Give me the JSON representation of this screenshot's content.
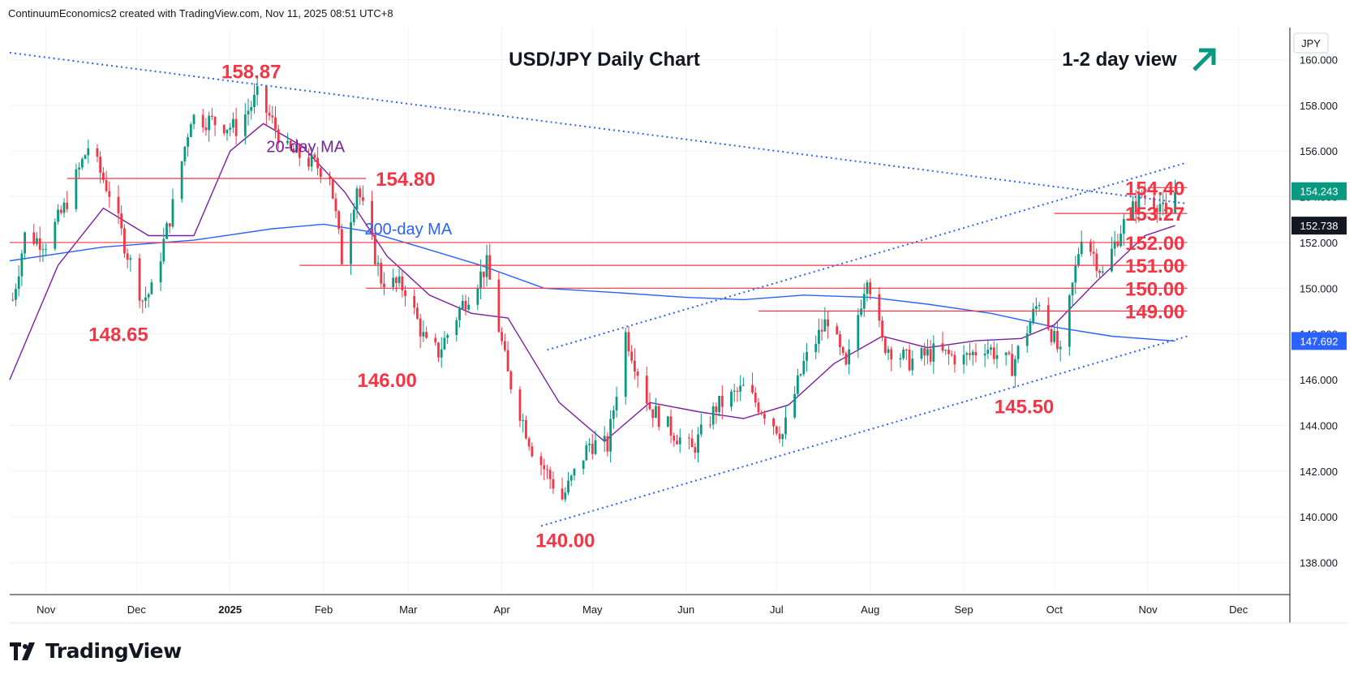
{
  "header": {
    "attribution": "ContinuumEconomics2 created with TradingView.com, Nov 11, 2025 08:51 UTC+8"
  },
  "footer": {
    "brand": "TradingView"
  },
  "colors": {
    "up": "#089981",
    "down": "#f23645",
    "ma20": "#7b1fa2",
    "ma200": "#2962ff",
    "level": "#f23645",
    "trend": "#2962ff",
    "arrow": "#089981",
    "lastPrice": "#089981",
    "ma20Tag": "#131722",
    "ma200Tag": "#2962ff"
  },
  "chart_data": {
    "type": "candlestick",
    "title": "USD/JPY Daily Chart",
    "subtitle": "1-2 day view",
    "currency": "JPY",
    "ylim": [
      136.6,
      161.4
    ],
    "y_ticks": [
      "160.000",
      "158.000",
      "156.000",
      "154.000",
      "152.000",
      "150.000",
      "148.000",
      "146.000",
      "144.000",
      "142.000",
      "140.000",
      "138.000"
    ],
    "x_ticks": [
      "Nov",
      "Dec",
      "2025",
      "Feb",
      "Mar",
      "Apr",
      "May",
      "Jun",
      "Jul",
      "Aug",
      "Sep",
      "Oct",
      "Nov",
      "Dec"
    ],
    "x_tick_dates": [
      "2024-11-01",
      "2024-12-01",
      "2025-01-01",
      "2025-02-01",
      "2025-03-01",
      "2025-04-01",
      "2025-05-01",
      "2025-06-01",
      "2025-07-01",
      "2025-08-01",
      "2025-09-01",
      "2025-10-01",
      "2025-11-01",
      "2025-12-01"
    ],
    "x_range": [
      "2024-10-20",
      "2025-12-18"
    ],
    "last_price": "154.243",
    "ma20_value": "152.738",
    "ma200_value": "147.692",
    "ma_labels": [
      {
        "text": "20-day MA",
        "date": "2025-01-26",
        "price": 156.2,
        "colorKey": "ma20"
      },
      {
        "text": "200-day MA",
        "date": "2025-03-01",
        "price": 152.6,
        "colorKey": "ma200"
      }
    ],
    "levels": [
      {
        "label": "154.40",
        "price": 154.4,
        "from": "2025-11-01"
      },
      {
        "label": "153.27",
        "price": 153.27,
        "from": "2025-10-01"
      },
      {
        "label": "152.00",
        "price": 152.0,
        "from": "2024-10-20"
      },
      {
        "label": "151.00",
        "price": 151.0,
        "from": "2025-01-24"
      },
      {
        "label": "150.00",
        "price": 150.0,
        "from": "2025-02-15"
      },
      {
        "label": "149.00",
        "price": 149.0,
        "from": "2025-06-25"
      },
      {
        "label": "154.80",
        "price": 154.8,
        "from": "2024-11-08",
        "to": "2025-02-15"
      }
    ],
    "annotations": [
      {
        "text": "158.87",
        "date": "2025-01-08",
        "price": 159.5
      },
      {
        "text": "148.65",
        "date": "2024-11-25",
        "price": 148.0
      },
      {
        "text": "146.00",
        "date": "2025-02-22",
        "price": 146.0
      },
      {
        "text": "140.00",
        "date": "2025-04-22",
        "price": 139.0
      },
      {
        "text": "145.50",
        "date": "2025-09-21",
        "price": 144.85
      }
    ],
    "trendlines": [
      {
        "from": [
          "2024-10-20",
          160.3
        ],
        "to": [
          "2025-11-14",
          153.7
        ]
      },
      {
        "from": [
          "2025-04-16",
          147.3
        ],
        "to": [
          "2025-11-14",
          155.5
        ]
      },
      {
        "from": [
          "2025-04-14",
          139.6
        ],
        "to": [
          "2025-11-14",
          147.9
        ]
      }
    ],
    "ma20": [
      [
        "2024-10-20",
        146.0
      ],
      [
        "2024-11-05",
        151.0
      ],
      [
        "2024-11-20",
        153.5
      ],
      [
        "2024-12-05",
        152.3
      ],
      [
        "2024-12-20",
        152.3
      ],
      [
        "2025-01-01",
        156.0
      ],
      [
        "2025-01-12",
        157.2
      ],
      [
        "2025-01-25",
        156.2
      ],
      [
        "2025-02-08",
        154.2
      ],
      [
        "2025-02-22",
        151.4
      ],
      [
        "2025-03-08",
        149.7
      ],
      [
        "2025-03-22",
        148.9
      ],
      [
        "2025-04-03",
        148.7
      ],
      [
        "2025-04-20",
        145.0
      ],
      [
        "2025-05-05",
        143.3
      ],
      [
        "2025-05-20",
        145.0
      ],
      [
        "2025-06-05",
        144.6
      ],
      [
        "2025-06-20",
        144.3
      ],
      [
        "2025-07-05",
        144.9
      ],
      [
        "2025-07-20",
        146.7
      ],
      [
        "2025-08-05",
        147.9
      ],
      [
        "2025-08-20",
        147.4
      ],
      [
        "2025-09-05",
        147.7
      ],
      [
        "2025-09-20",
        147.8
      ],
      [
        "2025-10-01",
        148.4
      ],
      [
        "2025-10-15",
        150.3
      ],
      [
        "2025-10-31",
        152.3
      ],
      [
        "2025-11-10",
        152.74
      ]
    ],
    "ma200": [
      [
        "2024-10-20",
        151.2
      ],
      [
        "2024-11-20",
        151.8
      ],
      [
        "2024-12-20",
        152.1
      ],
      [
        "2025-01-15",
        152.6
      ],
      [
        "2025-02-01",
        152.8
      ],
      [
        "2025-02-15",
        152.5
      ],
      [
        "2025-03-05",
        151.8
      ],
      [
        "2025-03-25",
        151.0
      ],
      [
        "2025-04-15",
        150.0
      ],
      [
        "2025-05-10",
        149.8
      ],
      [
        "2025-06-01",
        149.6
      ],
      [
        "2025-06-20",
        149.5
      ],
      [
        "2025-07-10",
        149.7
      ],
      [
        "2025-08-01",
        149.6
      ],
      [
        "2025-08-20",
        149.3
      ],
      [
        "2025-09-10",
        148.9
      ],
      [
        "2025-10-01",
        148.3
      ],
      [
        "2025-10-20",
        147.9
      ],
      [
        "2025-11-10",
        147.69
      ]
    ],
    "ohlc_path": [
      [
        "2024-10-21",
        149.5
      ],
      [
        "2024-10-25",
        152.3
      ],
      [
        "2024-11-01",
        152.0
      ],
      [
        "2024-11-07",
        153.5
      ],
      [
        "2024-11-15",
        156.2
      ],
      [
        "2024-11-22",
        154.2
      ],
      [
        "2024-11-28",
        151.5
      ],
      [
        "2024-12-03",
        149.5
      ],
      [
        "2024-12-06",
        149.9
      ],
      [
        "2024-12-13",
        153.6
      ],
      [
        "2024-12-19",
        157.5
      ],
      [
        "2024-12-26",
        157.3
      ],
      [
        "2025-01-03",
        157.0
      ],
      [
        "2025-01-10",
        158.4
      ],
      [
        "2025-01-14",
        157.5
      ],
      [
        "2025-01-20",
        156.0
      ],
      [
        "2025-01-24",
        155.8
      ],
      [
        "2025-02-03",
        155.0
      ],
      [
        "2025-02-07",
        151.3
      ],
      [
        "2025-02-12",
        154.5
      ],
      [
        "2025-02-20",
        150.4
      ],
      [
        "2025-02-28",
        150.0
      ],
      [
        "2025-03-07",
        147.5
      ],
      [
        "2025-03-11",
        147.2
      ],
      [
        "2025-03-19",
        149.3
      ],
      [
        "2025-03-27",
        151.0
      ],
      [
        "2025-04-03",
        146.2
      ],
      [
        "2025-04-11",
        143.0
      ],
      [
        "2025-04-21",
        140.8
      ],
      [
        "2025-04-30",
        143.2
      ],
      [
        "2025-05-06",
        143.1
      ],
      [
        "2025-05-12",
        148.0
      ],
      [
        "2025-05-20",
        144.8
      ],
      [
        "2025-05-27",
        143.8
      ],
      [
        "2025-06-03",
        142.9
      ],
      [
        "2025-06-11",
        144.8
      ],
      [
        "2025-06-20",
        145.6
      ],
      [
        "2025-06-27",
        144.6
      ],
      [
        "2025-07-03",
        143.6
      ],
      [
        "2025-07-10",
        146.7
      ],
      [
        "2025-07-18",
        148.7
      ],
      [
        "2025-07-24",
        146.4
      ],
      [
        "2025-07-31",
        150.7
      ],
      [
        "2025-08-05",
        147.6
      ],
      [
        "2025-08-14",
        146.8
      ],
      [
        "2025-08-22",
        147.2
      ],
      [
        "2025-09-01",
        146.9
      ],
      [
        "2025-09-08",
        147.5
      ],
      [
        "2025-09-17",
        146.6
      ],
      [
        "2025-09-26",
        149.5
      ],
      [
        "2025-10-03",
        147.0
      ],
      [
        "2025-10-10",
        152.4
      ],
      [
        "2025-10-14",
        151.5
      ],
      [
        "2025-10-17",
        150.6
      ],
      [
        "2025-10-23",
        152.6
      ],
      [
        "2025-10-30",
        154.1
      ],
      [
        "2025-11-05",
        153.7
      ],
      [
        "2025-11-07",
        153.0
      ],
      [
        "2025-11-10",
        154.2
      ]
    ]
  }
}
